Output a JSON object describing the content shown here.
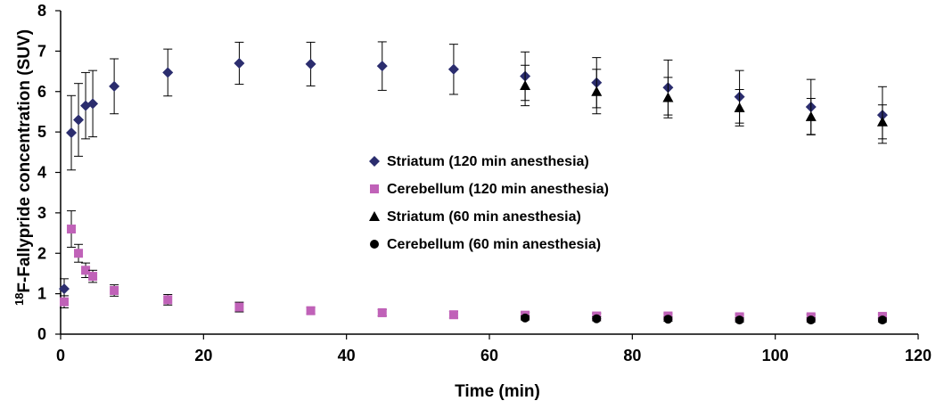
{
  "chart_data": {
    "type": "scatter",
    "title": "",
    "xlabel": "Time (min)",
    "ylabel_sup": "18",
    "ylabel_main": "F-Fallypride concentration (SUV)",
    "xlim": [
      0,
      120
    ],
    "ylim": [
      0,
      8
    ],
    "xticks": [
      0,
      20,
      40,
      60,
      80,
      100,
      120
    ],
    "yticks": [
      0,
      1,
      2,
      3,
      4,
      5,
      6,
      7,
      8
    ],
    "grid": false,
    "legend_position": "center-right",
    "series": [
      {
        "name": "Striatum (120 min anesthesia)",
        "marker": "diamond",
        "color": "#2b2d6e",
        "points": [
          {
            "x": 0.5,
            "y": 1.12,
            "err": 0.25
          },
          {
            "x": 1.5,
            "y": 4.98,
            "err": 0.92
          },
          {
            "x": 2.5,
            "y": 5.3,
            "err": 0.9
          },
          {
            "x": 3.5,
            "y": 5.65,
            "err": 0.82
          },
          {
            "x": 4.5,
            "y": 5.7,
            "err": 0.82
          },
          {
            "x": 7.5,
            "y": 6.13,
            "err": 0.68
          },
          {
            "x": 15,
            "y": 6.47,
            "err": 0.58
          },
          {
            "x": 25,
            "y": 6.7,
            "err": 0.52
          },
          {
            "x": 35,
            "y": 6.68,
            "err": 0.54
          },
          {
            "x": 45,
            "y": 6.63,
            "err": 0.6
          },
          {
            "x": 55,
            "y": 6.55,
            "err": 0.62
          },
          {
            "x": 65,
            "y": 6.38,
            "err": 0.6
          },
          {
            "x": 75,
            "y": 6.22,
            "err": 0.62
          },
          {
            "x": 85,
            "y": 6.1,
            "err": 0.68
          },
          {
            "x": 95,
            "y": 5.87,
            "err": 0.65
          },
          {
            "x": 105,
            "y": 5.62,
            "err": 0.68
          },
          {
            "x": 115,
            "y": 5.42,
            "err": 0.7
          }
        ]
      },
      {
        "name": "Cerebellum (120 min anesthesia)",
        "marker": "square",
        "color": "#c062b8",
        "points": [
          {
            "x": 0.5,
            "y": 0.8,
            "err": 0.15
          },
          {
            "x": 1.5,
            "y": 2.6,
            "err": 0.45
          },
          {
            "x": 2.5,
            "y": 2.0,
            "err": 0.22
          },
          {
            "x": 3.5,
            "y": 1.58,
            "err": 0.18
          },
          {
            "x": 4.5,
            "y": 1.43,
            "err": 0.15
          },
          {
            "x": 7.5,
            "y": 1.08,
            "err": 0.14
          },
          {
            "x": 15,
            "y": 0.85,
            "err": 0.13
          },
          {
            "x": 25,
            "y": 0.67,
            "err": 0.12
          },
          {
            "x": 35,
            "y": 0.58,
            "err": 0.08
          },
          {
            "x": 45,
            "y": 0.53,
            "err": 0.08
          },
          {
            "x": 55,
            "y": 0.48,
            "err": 0.08
          },
          {
            "x": 65,
            "y": 0.47,
            "err": 0.07
          },
          {
            "x": 75,
            "y": 0.45,
            "err": 0.07
          },
          {
            "x": 85,
            "y": 0.45,
            "err": 0.06
          },
          {
            "x": 95,
            "y": 0.43,
            "err": 0.06
          },
          {
            "x": 105,
            "y": 0.43,
            "err": 0.06
          },
          {
            "x": 115,
            "y": 0.44,
            "err": 0.06
          }
        ]
      },
      {
        "name": "Striatum (60 min anesthesia)",
        "marker": "triangle",
        "color": "#000000",
        "points": [
          {
            "x": 65,
            "y": 6.15,
            "err": 0.5
          },
          {
            "x": 75,
            "y": 6.0,
            "err": 0.55
          },
          {
            "x": 85,
            "y": 5.85,
            "err": 0.5
          },
          {
            "x": 95,
            "y": 5.6,
            "err": 0.45
          },
          {
            "x": 105,
            "y": 5.38,
            "err": 0.45
          },
          {
            "x": 115,
            "y": 5.25,
            "err": 0.42
          }
        ]
      },
      {
        "name": "Cerebellum (60 min anesthesia)",
        "marker": "circle",
        "color": "#000000",
        "points": [
          {
            "x": 65,
            "y": 0.4,
            "err": 0.05
          },
          {
            "x": 75,
            "y": 0.38,
            "err": 0.05
          },
          {
            "x": 85,
            "y": 0.37,
            "err": 0.05
          },
          {
            "x": 95,
            "y": 0.35,
            "err": 0.05
          },
          {
            "x": 105,
            "y": 0.35,
            "err": 0.05
          },
          {
            "x": 115,
            "y": 0.35,
            "err": 0.05
          }
        ]
      }
    ]
  }
}
